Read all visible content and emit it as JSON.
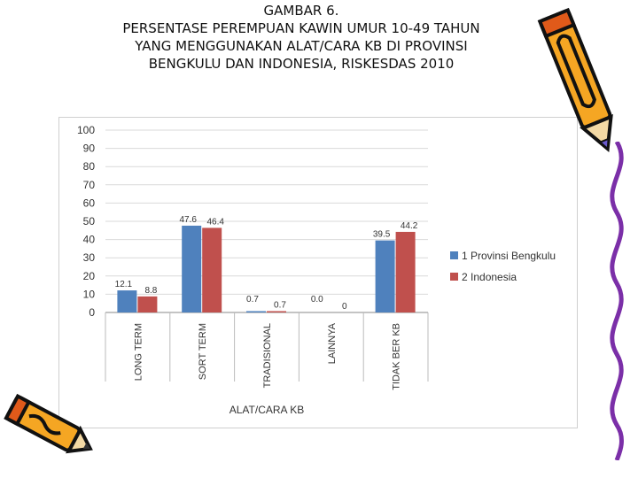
{
  "title_lines": [
    "GAMBAR 6.",
    "PERSENTASE PEREMPUAN KAWIN UMUR 10-49 TAHUN",
    "YANG MENGGUNAKAN ALAT/CARA KB DI PROVINSI",
    "BENGKULU DAN INDONESIA, RISKESDAS 2010"
  ],
  "chart_data": {
    "type": "bar",
    "title": "",
    "xlabel": "ALAT/CARA KB",
    "ylabel": "",
    "ylim": [
      0,
      100
    ],
    "yticks": [
      "0",
      "10",
      "20",
      "30",
      "40",
      "50",
      "60",
      "70",
      "80",
      "90",
      "100"
    ],
    "categories": [
      "LONG TERM",
      "SORT TERM",
      "TRADISIONAL",
      "LAINNYA",
      "TIDAK BER KB"
    ],
    "series": [
      {
        "name": "1 Provinsi Bengkulu",
        "values": [
          12.1,
          47.6,
          0.7,
          0.0,
          39.5
        ],
        "labels": [
          "12.1",
          "47.6",
          "0.7",
          "0.0",
          "39.5"
        ],
        "color": "#4f81bd"
      },
      {
        "name": "2 Indonesia",
        "values": [
          8.8,
          46.4,
          0.7,
          0,
          44.2
        ],
        "labels": [
          "8.8",
          "46.4",
          "0.7",
          "0",
          "44.2"
        ],
        "color": "#c0504d"
      }
    ],
    "grid": true,
    "legend": "right"
  },
  "colors": {
    "pencil_body": "#f5a623",
    "pencil_outline": "#111111",
    "pencil_accent": "#e05a1a"
  },
  "icons": [
    "pencil-icon",
    "pencil-icon"
  ]
}
